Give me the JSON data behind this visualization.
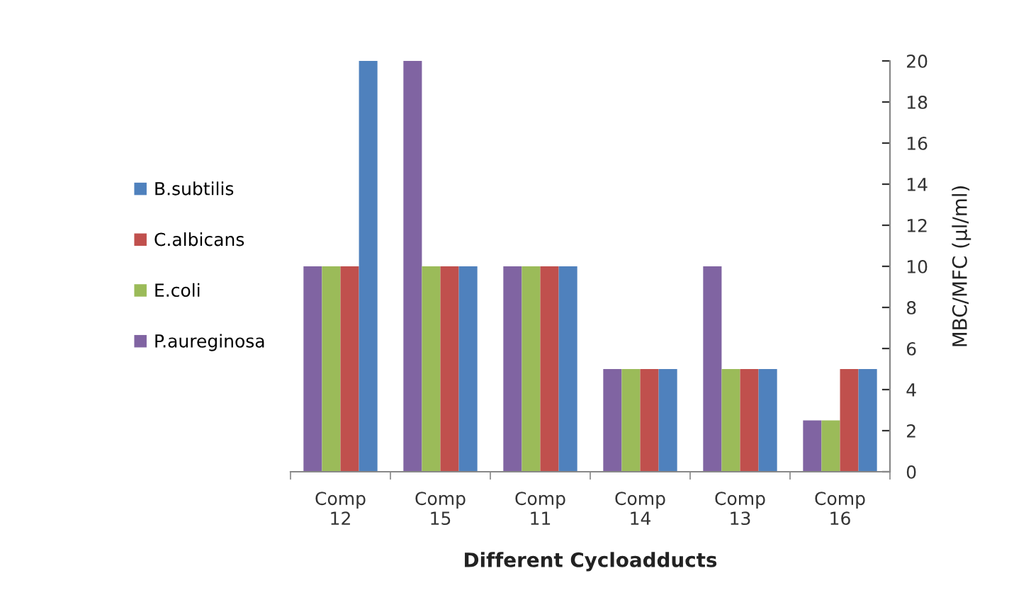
{
  "chart_data": {
    "type": "bar",
    "xlabel": "Different Cycloadducts",
    "ylabel": "MBC/MFC (µl/ml)",
    "categories": [
      "Comp 12",
      "Comp 15",
      "Comp 11",
      "Comp 14",
      "Comp 13",
      "Comp 16"
    ],
    "series": [
      {
        "name": "P.aureginosa",
        "color": "#8064a2",
        "values": [
          10,
          20,
          10,
          5,
          10,
          2.5
        ]
      },
      {
        "name": "E.coli",
        "color": "#9bbb59",
        "values": [
          10,
          10,
          10,
          5,
          5,
          2.5
        ]
      },
      {
        "name": "C.albicans",
        "color": "#c0504d",
        "values": [
          10,
          10,
          10,
          5,
          5,
          5
        ]
      },
      {
        "name": "B.subtilis",
        "color": "#4f81bd",
        "values": [
          20,
          10,
          10,
          5,
          5,
          5
        ]
      }
    ],
    "ylim": [
      0,
      20
    ],
    "yticks": [
      0,
      2,
      4,
      6,
      8,
      10,
      12,
      14,
      16,
      18,
      20
    ],
    "grid": false,
    "legend": "left"
  }
}
